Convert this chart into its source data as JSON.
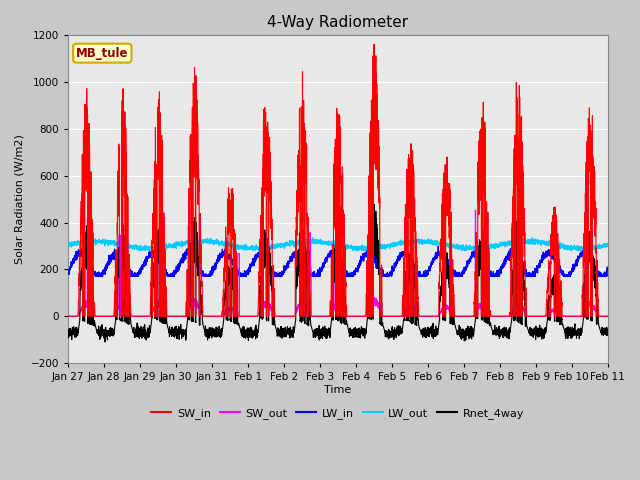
{
  "title": "4-Way Radiometer",
  "xlabel": "Time",
  "ylabel": "Solar Radiation (W/m2)",
  "ylim": [
    -200,
    1200
  ],
  "yticks": [
    -200,
    0,
    200,
    400,
    600,
    800,
    1000,
    1200
  ],
  "x_tick_labels": [
    "Jan 27",
    "Jan 28",
    "Jan 29",
    "Jan 30",
    "Jan 31",
    "Feb 1",
    "Feb 2",
    "Feb 3",
    "Feb 4",
    "Feb 5",
    "Feb 6",
    "Feb 7",
    "Feb 8",
    "Feb 9",
    "Feb 10",
    "Feb 11"
  ],
  "annotation_text": "MB_tule",
  "fig_bg_color": "#c8c8c8",
  "plot_bg_color": "#e8e8e8",
  "legend_entries": [
    "SW_in",
    "SW_out",
    "LW_in",
    "LW_out",
    "Rnet_4way"
  ],
  "legend_colors": [
    "#ff0000",
    "#ff00ff",
    "#0000ff",
    "#00ccff",
    "#000000"
  ],
  "seed": 42,
  "n_days": 15,
  "n_pts_per_day": 288
}
